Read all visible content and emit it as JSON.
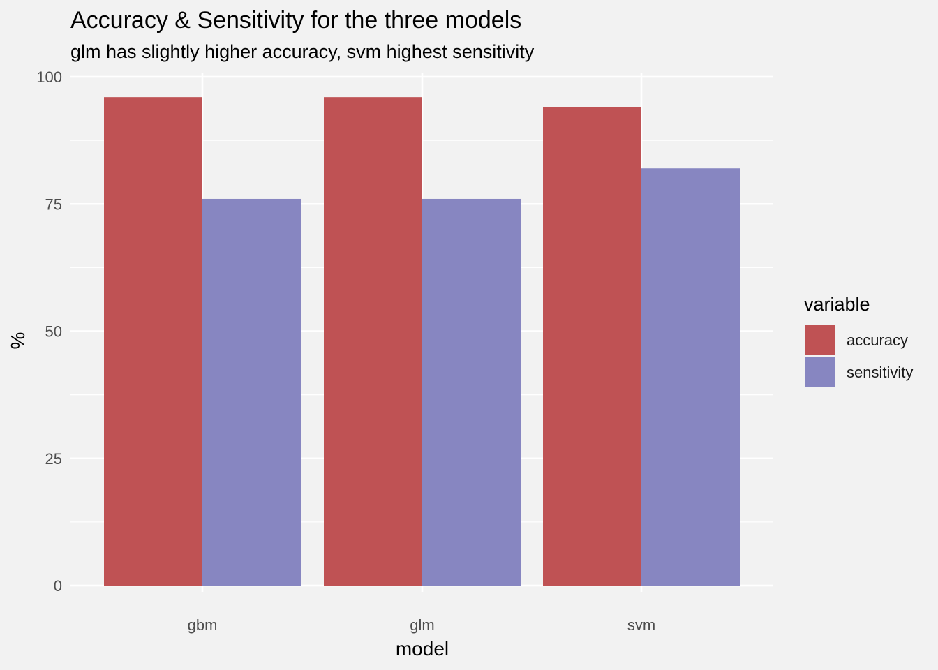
{
  "chart_data": {
    "type": "bar",
    "title": "Accuracy & Sensitivity for the three models",
    "subtitle": "glm has slightly higher accuracy, svm highest sensitivity",
    "xlabel": "model",
    "ylabel": "%",
    "categories": [
      "gbm",
      "glm",
      "svm"
    ],
    "series": [
      {
        "name": "accuracy",
        "values": [
          96,
          96,
          94
        ],
        "color": "#bf5254"
      },
      {
        "name": "sensitivity",
        "values": [
          76,
          76,
          82
        ],
        "color": "#8786c1"
      }
    ],
    "ylim": [
      0,
      100
    ],
    "yticks": [
      0,
      25,
      50,
      75,
      100
    ],
    "ytick_labels": [
      "0",
      "25",
      "50",
      "75",
      "100"
    ],
    "grid": true,
    "legend": {
      "title": "variable",
      "position": "right"
    },
    "background": "#f2f2f2",
    "grid_color": "#ffffff"
  }
}
